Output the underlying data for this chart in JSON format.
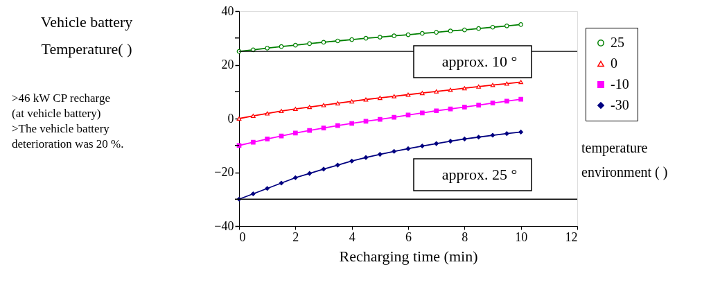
{
  "chart_data": {
    "type": "line",
    "xlabel": "Recharging time (min)",
    "legend_title": "temperature\nenvironment (    )",
    "legend": "right",
    "grid": false,
    "line_style": "solid",
    "x": [
      0,
      0.5,
      1,
      1.5,
      2,
      2.5,
      3,
      3.5,
      4,
      4.5,
      5,
      5.5,
      6,
      6.5,
      7,
      7.5,
      8,
      8.5,
      9,
      9.5,
      10
    ],
    "xlim": [
      0,
      12
    ],
    "xticks": [
      0,
      2,
      4,
      6,
      8,
      10,
      12
    ],
    "ylim": [
      -40,
      40
    ],
    "yticks": [
      -40,
      {
        "value": -30,
        "label": null
      },
      -20,
      {
        "value": -10,
        "label": null
      },
      0,
      {
        "value": 10,
        "label": null
      },
      20,
      {
        "value": 30,
        "label": null
      },
      40
    ],
    "series": [
      {
        "name": "25",
        "color": "#008000",
        "marker": "circle",
        "values": [
          25,
          25.6,
          26.2,
          26.8,
          27.3,
          27.9,
          28.4,
          28.9,
          29.4,
          29.9,
          30.3,
          30.8,
          31.2,
          31.7,
          32.1,
          32.6,
          33.0,
          33.5,
          34.0,
          34.5,
          35.0
        ]
      },
      {
        "name": "0",
        "color": "#ff0000",
        "marker": "triangle",
        "values": [
          0,
          1.0,
          1.9,
          2.8,
          3.6,
          4.3,
          5.0,
          5.7,
          6.4,
          7.1,
          7.7,
          8.3,
          8.9,
          9.5,
          10.1,
          10.7,
          11.3,
          11.9,
          12.5,
          13.0,
          13.6
        ]
      },
      {
        "name": "-10",
        "color": "#ff00ff",
        "marker": "square",
        "values": [
          -10,
          -8.8,
          -7.6,
          -6.5,
          -5.4,
          -4.4,
          -3.5,
          -2.6,
          -1.8,
          -1.0,
          -0.3,
          0.5,
          1.3,
          2.1,
          2.9,
          3.6,
          4.3,
          5.0,
          5.8,
          6.5,
          7.2
        ]
      },
      {
        "name": "-30",
        "color": "#000080",
        "marker": "diamond",
        "values": [
          -30,
          -28,
          -26,
          -24,
          -22,
          -20.4,
          -18.8,
          -17.3,
          -15.8,
          -14.5,
          -13.3,
          -12.2,
          -11.2,
          -10.2,
          -9.3,
          -8.4,
          -7.6,
          -6.9,
          -6.2,
          -5.6,
          -5
        ]
      }
    ],
    "ref_lines": [
      {
        "axis": "y",
        "value": 25,
        "color": "#000000"
      },
      {
        "axis": "y",
        "value": -30,
        "color": "#000000"
      }
    ],
    "annotations": [
      "approx. 10 °",
      "approx. 25 °",
      "Vehicle battery\nTemperature(    )",
      ">46 kW CP recharge",
      "  (at vehicle battery)",
      ">The vehicle battery",
      "  deterioration was 20 %."
    ]
  }
}
